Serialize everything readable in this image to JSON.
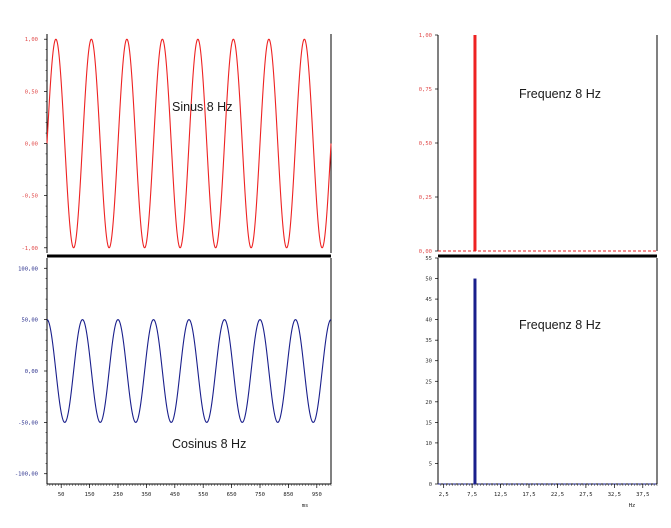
{
  "colors": {
    "sine": "#ee2222",
    "cosine": "#1a1f8c",
    "axis": "#000000",
    "text": "#1a1a1a",
    "sine_tick": "#e04848",
    "cos_tick": "#2a2f8c",
    "spec_top_tick": "#e04848",
    "spec_bot_tick": "#333333"
  },
  "chart_data": [
    {
      "type": "line",
      "id": "sine",
      "annotation": "Sinus  8 Hz",
      "function": "sin",
      "frequency_hz": 8,
      "amplitude": 1,
      "x_range": [
        0,
        1000
      ],
      "ylim": [
        -1.05,
        1.05
      ],
      "y_ticks": [
        1.0,
        0.5,
        0.0,
        -0.5,
        -1.0
      ],
      "y_tick_labels": [
        "1,00",
        "0,50",
        "0,00",
        "-0,50",
        "-1,00"
      ]
    },
    {
      "type": "bar",
      "id": "spectrum-top",
      "annotation": "Frequenz  8 Hz",
      "x": [
        8
      ],
      "values": [
        1.0
      ],
      "baseline": 0,
      "ylim": [
        0,
        1.0
      ],
      "y_ticks": [
        1.0,
        0.75,
        0.5,
        0.25,
        0.0
      ],
      "y_tick_labels": [
        "1,00",
        "0,75",
        "0,50",
        "0,25",
        "0,00"
      ]
    },
    {
      "type": "line",
      "id": "cosine",
      "annotation": "Cosinus  8 Hz",
      "function": "cos",
      "frequency_hz": 8,
      "amplitude": 50,
      "x_range": [
        0,
        1000
      ],
      "ylim": [
        -110,
        110
      ],
      "y_ticks": [
        100,
        50,
        0,
        -50,
        -100
      ],
      "y_tick_labels": [
        "100,00",
        "50,00",
        "0,00",
        "-50,00",
        "-100,00"
      ],
      "x_ticks": [
        50,
        150,
        250,
        350,
        450,
        550,
        650,
        750,
        850,
        950
      ],
      "x_tick_labels": [
        "50",
        "150",
        "250",
        "350",
        "450",
        "550",
        "650",
        "750",
        "850",
        "950"
      ],
      "xlabel": "ms"
    },
    {
      "type": "bar",
      "id": "spectrum-bottom",
      "annotation": "Frequenz  8 Hz",
      "x": [
        8
      ],
      "values": [
        50
      ],
      "baseline": 0,
      "ylim": [
        0,
        55
      ],
      "y_ticks": [
        55,
        50,
        45,
        40,
        35,
        30,
        25,
        20,
        15,
        10,
        5,
        0
      ],
      "y_tick_labels": [
        "55",
        "50",
        "45",
        "40",
        "35",
        "30",
        "25",
        "20",
        "15",
        "10",
        "5",
        "0"
      ],
      "x_ticks": [
        2.5,
        7.5,
        12.5,
        17.5,
        22.5,
        27.5,
        32.5,
        37.5
      ],
      "x_tick_labels": [
        "2,5",
        "7,5",
        "12,5",
        "17,5",
        "22,5",
        "27,5",
        "32,5",
        "37,5"
      ],
      "xlabel": "Hz"
    }
  ]
}
